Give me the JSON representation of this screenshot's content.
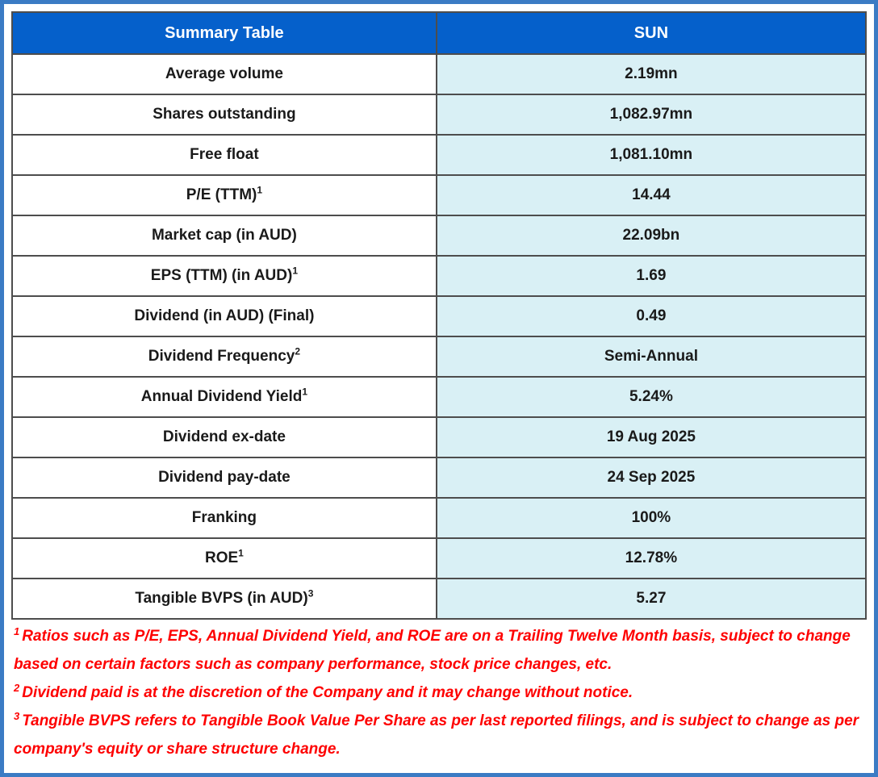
{
  "colors": {
    "frame_blue": "#3b7bc4",
    "header_blue": "#0560cb",
    "value_cell_bg": "#d9f0f5",
    "border_gray": "#4d4d4d",
    "footnote_red": "#fe0000",
    "header_text": "#ffffff",
    "cell_text": "#1a1a1a"
  },
  "table": {
    "header": {
      "label_col": "Summary Table",
      "value_col": "SUN"
    },
    "rows": [
      {
        "label": "Average volume",
        "sup": "",
        "value": "2.19mn"
      },
      {
        "label": "Shares outstanding",
        "sup": "",
        "value": "1,082.97mn"
      },
      {
        "label": "Free float",
        "sup": "",
        "value": "1,081.10mn"
      },
      {
        "label": "P/E (TTM)",
        "sup": "1",
        "value": "14.44"
      },
      {
        "label": "Market cap (in AUD)",
        "sup": "",
        "value": "22.09bn"
      },
      {
        "label": "EPS (TTM) (in AUD)",
        "sup": "1",
        "value": "1.69"
      },
      {
        "label": "Dividend (in AUD) (Final)",
        "sup": "",
        "value": "0.49"
      },
      {
        "label": "Dividend Frequency",
        "sup": "2",
        "value": "Semi-Annual"
      },
      {
        "label": "Annual Dividend Yield",
        "sup": "1",
        "value": "5.24%"
      },
      {
        "label": "Dividend ex-date",
        "sup": "",
        "value": "19 Aug 2025"
      },
      {
        "label": "Dividend pay-date",
        "sup": "",
        "value": "24 Sep 2025"
      },
      {
        "label": "Franking",
        "sup": "",
        "value": "100%"
      },
      {
        "label": "ROE",
        "sup": "1",
        "value": "12.78%"
      },
      {
        "label": "Tangible BVPS (in AUD)",
        "sup": "3",
        "value": "5.27"
      }
    ]
  },
  "footnotes": [
    {
      "sup": "1",
      "text": "Ratios such as P/E, EPS, Annual Dividend Yield, and ROE are on a Trailing Twelve Month basis, subject to change based on certain factors such as company performance, stock price changes, etc."
    },
    {
      "sup": "2",
      "text": "Dividend paid is at the discretion of the Company and it may change without notice."
    },
    {
      "sup": "3",
      "text": "Tangible BVPS refers to Tangible Book Value Per Share as per last reported filings, and is subject to change as per company's equity or share structure change."
    }
  ]
}
